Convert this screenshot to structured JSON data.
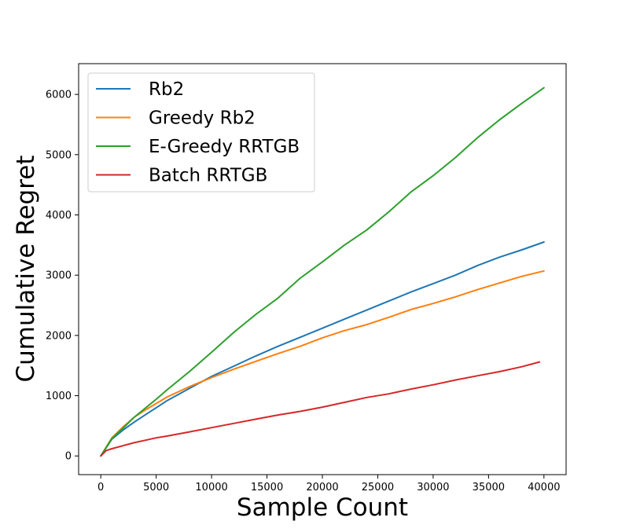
{
  "chart_data": {
    "type": "line",
    "title": "",
    "xlabel": "Sample Count",
    "ylabel": "Cumulative Regret",
    "xlim": [
      -2000,
      42000
    ],
    "ylim": [
      -310,
      6510
    ],
    "xticks": [
      0,
      5000,
      10000,
      15000,
      20000,
      25000,
      30000,
      35000,
      40000
    ],
    "yticks": [
      0,
      1000,
      2000,
      3000,
      4000,
      5000,
      6000
    ],
    "legend_position": "top-left",
    "grid": false,
    "series": [
      {
        "name": "Rb2",
        "color": "#1f77b4",
        "x": [
          0,
          1000,
          2000,
          3000,
          4000,
          5000,
          6000,
          8000,
          10000,
          12000,
          14000,
          16000,
          18000,
          20000,
          22000,
          24000,
          26000,
          28000,
          30000,
          32000,
          34000,
          36000,
          38000,
          40000
        ],
        "y": [
          0,
          280,
          430,
          560,
          680,
          800,
          920,
          1120,
          1320,
          1490,
          1660,
          1820,
          1970,
          2120,
          2270,
          2420,
          2570,
          2720,
          2860,
          3000,
          3160,
          3300,
          3420,
          3550
        ]
      },
      {
        "name": "Greedy Rb2",
        "color": "#ff7f0e",
        "x": [
          0,
          1000,
          2000,
          3000,
          4000,
          5000,
          6000,
          8000,
          10000,
          12000,
          14000,
          16000,
          18000,
          20000,
          22000,
          24000,
          26000,
          28000,
          30000,
          32000,
          34000,
          36000,
          38000,
          40000
        ],
        "y": [
          0,
          300,
          480,
          640,
          760,
          870,
          980,
          1150,
          1300,
          1440,
          1570,
          1700,
          1820,
          1960,
          2080,
          2180,
          2300,
          2430,
          2530,
          2640,
          2760,
          2870,
          2980,
          3070
        ]
      },
      {
        "name": "E-Greedy RRTGB",
        "color": "#2ca02c",
        "x": [
          0,
          1000,
          2000,
          3000,
          4000,
          5000,
          6000,
          8000,
          10000,
          12000,
          14000,
          16000,
          18000,
          20000,
          22000,
          24000,
          26000,
          28000,
          30000,
          32000,
          34000,
          36000,
          38000,
          40000
        ],
        "y": [
          0,
          290,
          460,
          640,
          790,
          940,
          1100,
          1400,
          1720,
          2050,
          2350,
          2620,
          2950,
          3220,
          3500,
          3750,
          4050,
          4380,
          4650,
          4950,
          5280,
          5580,
          5850,
          6110
        ]
      },
      {
        "name": "Batch RRTGB",
        "color": "#d62728",
        "x": [
          0,
          500,
          1000,
          2000,
          3000,
          4000,
          5000,
          6000,
          8000,
          10000,
          12000,
          14000,
          16000,
          18000,
          20000,
          22000,
          24000,
          26000,
          28000,
          30000,
          32000,
          34000,
          36000,
          38000,
          39600
        ],
        "y": [
          0,
          90,
          120,
          170,
          220,
          260,
          300,
          330,
          400,
          470,
          540,
          610,
          680,
          740,
          810,
          890,
          970,
          1030,
          1110,
          1180,
          1260,
          1330,
          1400,
          1480,
          1560
        ]
      }
    ]
  }
}
